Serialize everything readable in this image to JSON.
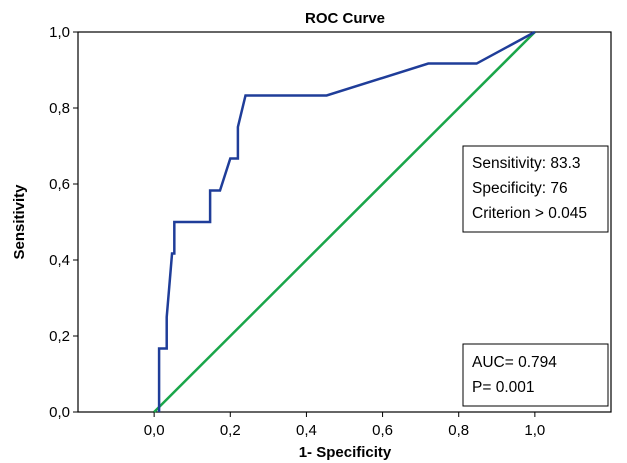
{
  "chart_data": {
    "type": "line",
    "title": "ROC Curve",
    "xlabel": "1- Specificity",
    "ylabel": "Sensitivity",
    "xlim": [
      -0.2,
      1.2
    ],
    "ylim": [
      0.0,
      1.0
    ],
    "x_ticks": [
      0.0,
      0.2,
      0.4,
      0.6,
      0.8,
      1.0
    ],
    "x_tick_labels": [
      "0,0",
      "0,2",
      "0,4",
      "0,6",
      "0,8",
      "1,0"
    ],
    "y_ticks": [
      0.0,
      0.2,
      0.4,
      0.6,
      0.8,
      1.0
    ],
    "y_tick_labels": [
      "0,0",
      "0,2",
      "0,4",
      "0,6",
      "0,8",
      "1,0"
    ],
    "grid": false,
    "series": [
      {
        "color": "#1f3d99",
        "x": [
          0.013,
          0.013,
          0.033,
          0.033,
          0.04,
          0.04,
          0.047,
          0.047,
          0.053,
          0.053,
          0.147,
          0.147,
          0.173,
          0.173,
          0.2,
          0.2,
          0.22,
          0.22,
          0.24,
          0.24,
          0.453,
          0.72,
          0.847,
          1.0
        ],
        "y": [
          0.0,
          0.167,
          0.167,
          0.25,
          0.333,
          0.333,
          0.417,
          0.417,
          0.417,
          0.5,
          0.5,
          0.583,
          0.583,
          0.583,
          0.667,
          0.667,
          0.667,
          0.75,
          0.833,
          0.833,
          0.833,
          0.917,
          0.917,
          1.0
        ]
      },
      {
        "color": "#1aa64a",
        "x": [
          0.0,
          1.0
        ],
        "y": [
          0.0,
          1.0
        ]
      }
    ],
    "annotations": {
      "stats_box": [
        "Sensitivity: 83.3",
        "Specificity: 76",
        "Criterion > 0.045"
      ],
      "auc_box": [
        "AUC= 0.794",
        "P= 0.001"
      ]
    }
  }
}
